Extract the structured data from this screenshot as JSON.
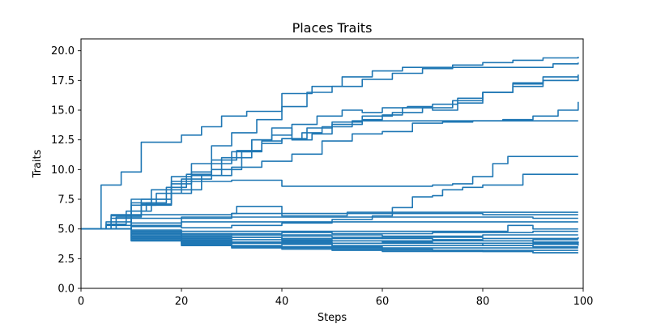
{
  "chart_data": {
    "type": "line",
    "title": "Places Traits",
    "xlabel": "Steps",
    "ylabel": "Traits",
    "xlim": [
      0,
      100
    ],
    "ylim": [
      0,
      21
    ],
    "xticks": [
      0,
      20,
      40,
      60,
      80,
      100
    ],
    "xtick_labels": [
      "0",
      "20",
      "40",
      "60",
      "80",
      "100"
    ],
    "yticks": [
      0,
      2.5,
      5,
      7.5,
      10,
      12.5,
      15,
      17.5,
      20
    ],
    "ytick_labels": [
      "0.0",
      "2.5",
      "5.0",
      "7.5",
      "10.0",
      "12.5",
      "15.0",
      "17.5",
      "20.0"
    ],
    "grid": false,
    "legend": "none",
    "color": "#1f77b4",
    "series": [
      {
        "x": [
          0,
          4,
          8,
          12,
          15,
          20,
          24,
          28,
          33,
          40,
          46,
          52,
          58,
          64,
          70,
          76,
          82,
          88,
          94,
          99
        ],
        "y": [
          5.0,
          8.7,
          9.8,
          12.3,
          12.3,
          12.9,
          13.6,
          14.5,
          14.9,
          16.4,
          17.0,
          17.8,
          18.3,
          18.6,
          18.6,
          18.6,
          18.6,
          18.6,
          18.9,
          19.0
        ]
      },
      {
        "x": [
          0,
          6,
          10,
          14,
          18,
          22,
          26,
          30,
          35,
          40,
          45,
          50,
          56,
          62,
          68,
          74,
          80,
          86,
          92,
          99
        ],
        "y": [
          5.0,
          6.2,
          7.2,
          8.3,
          9.4,
          10.5,
          12.0,
          13.1,
          14.2,
          15.3,
          16.5,
          17.0,
          17.6,
          18.1,
          18.5,
          18.8,
          19.0,
          19.2,
          19.4,
          19.5
        ]
      },
      {
        "x": [
          0,
          5,
          10,
          14,
          18,
          22,
          26,
          30,
          34,
          38,
          42,
          47,
          52,
          56,
          60,
          65,
          70,
          75,
          80,
          86,
          92,
          99
        ],
        "y": [
          5.0,
          5.3,
          6.5,
          7.5,
          8.8,
          9.8,
          10.5,
          11.5,
          12.5,
          12.9,
          13.8,
          14.5,
          15.0,
          14.8,
          15.2,
          15.3,
          15.5,
          16.0,
          16.5,
          17.0,
          17.5,
          17.5
        ]
      },
      {
        "x": [
          0,
          6,
          10,
          15,
          20,
          26,
          32,
          36,
          40,
          45,
          50,
          56,
          60,
          64,
          70,
          75,
          80,
          86,
          92,
          99
        ],
        "y": [
          5.0,
          5.9,
          7.0,
          8.0,
          9.2,
          10.0,
          11.5,
          12.4,
          12.6,
          13.5,
          14.0,
          14.2,
          14.6,
          15.2,
          15.0,
          15.6,
          16.5,
          17.3,
          17.8,
          18.0
        ]
      },
      {
        "x": [
          0,
          5,
          10,
          14,
          18,
          22,
          28,
          34,
          38,
          42,
          46,
          50,
          56,
          62,
          68,
          74,
          80,
          86,
          92,
          99
        ],
        "y": [
          5.0,
          5.6,
          7.5,
          7.0,
          9.0,
          9.5,
          11.0,
          12.5,
          13.5,
          12.5,
          13.0,
          13.8,
          14.5,
          14.8,
          15.2,
          15.8,
          16.5,
          17.2,
          17.5,
          17.8
        ]
      },
      {
        "x": [
          0,
          5,
          9,
          13,
          17,
          21,
          26,
          31,
          36,
          40,
          44,
          48,
          54,
          60,
          66,
          72,
          78,
          84,
          90,
          95,
          99
        ],
        "y": [
          5.0,
          5.4,
          6.5,
          7.2,
          8.5,
          9.6,
          10.8,
          11.6,
          12.2,
          12.6,
          13.1,
          13.6,
          14.1,
          14.1,
          14.1,
          14.1,
          14.1,
          14.2,
          14.5,
          15.0,
          15.7
        ]
      },
      {
        "x": [
          0,
          7,
          12,
          18,
          24,
          30,
          36,
          42,
          48,
          54,
          60,
          66,
          72,
          78,
          82,
          86,
          90,
          94,
          99
        ],
        "y": [
          5.0,
          6.0,
          7.1,
          8.3,
          9.5,
          10.2,
          10.7,
          11.3,
          12.4,
          13.0,
          13.2,
          13.9,
          14.0,
          14.1,
          14.1,
          14.1,
          14.1,
          14.1,
          14.1
        ]
      },
      {
        "x": [
          0,
          6,
          12,
          18,
          22,
          30,
          40,
          50,
          60,
          66,
          70,
          74,
          78,
          82,
          85,
          88,
          92,
          99
        ],
        "y": [
          5.0,
          6.1,
          7.5,
          8.0,
          9.0,
          9.1,
          8.6,
          8.6,
          8.6,
          8.6,
          8.7,
          8.8,
          9.4,
          10.5,
          11.1,
          11.1,
          11.1,
          11.1
        ]
      },
      {
        "x": [
          0,
          10,
          20,
          30,
          40,
          50,
          58,
          62,
          66,
          70,
          72,
          76,
          80,
          84,
          88,
          92,
          99
        ],
        "y": [
          5.0,
          5.2,
          5.1,
          5.3,
          5.5,
          5.8,
          6.1,
          6.8,
          7.7,
          7.8,
          8.3,
          8.5,
          8.7,
          8.7,
          9.6,
          9.6,
          9.6
        ]
      },
      {
        "x": [
          0,
          10,
          20,
          30,
          31,
          40,
          50,
          53,
          60,
          70,
          80,
          90,
          99
        ],
        "y": [
          5.0,
          5.3,
          5.9,
          6.3,
          6.9,
          6.1,
          6.1,
          6.4,
          6.4,
          6.4,
          6.4,
          6.4,
          6.4
        ]
      },
      {
        "x": [
          0,
          10,
          20,
          30,
          40,
          50,
          60,
          70,
          80,
          90,
          99
        ],
        "y": [
          5.0,
          6.2,
          6.2,
          6.3,
          6.3,
          6.3,
          6.3,
          6.3,
          6.2,
          6.2,
          6.2
        ]
      },
      {
        "x": [
          0,
          10,
          20,
          30,
          40,
          50,
          60,
          70,
          80,
          90,
          99
        ],
        "y": [
          5.0,
          5.9,
          6.0,
          6.0,
          6.0,
          6.0,
          6.0,
          6.0,
          6.0,
          5.9,
          5.9
        ]
      },
      {
        "x": [
          0,
          10,
          20,
          30,
          40,
          50,
          60,
          70,
          80,
          90,
          99
        ],
        "y": [
          5.0,
          5.5,
          5.6,
          5.6,
          5.6,
          5.6,
          5.6,
          5.6,
          5.6,
          5.6,
          5.6
        ]
      },
      {
        "x": [
          0,
          10,
          20,
          30,
          40,
          50,
          60,
          70,
          80,
          85,
          90,
          99
        ],
        "y": [
          5.0,
          4.9,
          4.8,
          4.8,
          4.8,
          4.8,
          4.8,
          4.8,
          4.8,
          5.3,
          5.0,
          5.0
        ]
      },
      {
        "x": [
          0,
          10,
          20,
          30,
          40,
          50,
          60,
          70,
          80,
          90,
          99
        ],
        "y": [
          5.0,
          4.7,
          4.6,
          4.6,
          4.7,
          4.6,
          4.6,
          4.7,
          4.7,
          4.8,
          4.8
        ]
      },
      {
        "x": [
          0,
          10,
          20,
          30,
          40,
          50,
          60,
          70,
          80,
          90,
          99
        ],
        "y": [
          5.0,
          4.6,
          4.5,
          4.5,
          4.5,
          4.5,
          4.4,
          4.4,
          4.5,
          4.5,
          4.5
        ]
      },
      {
        "x": [
          0,
          10,
          20,
          30,
          40,
          50,
          60,
          70,
          80,
          90,
          99
        ],
        "y": [
          5.0,
          4.5,
          4.3,
          4.3,
          4.2,
          4.2,
          4.3,
          4.3,
          4.2,
          4.2,
          4.3
        ]
      },
      {
        "x": [
          0,
          10,
          20,
          30,
          40,
          50,
          60,
          70,
          80,
          90,
          99
        ],
        "y": [
          5.0,
          4.4,
          4.2,
          4.1,
          4.0,
          4.0,
          4.0,
          4.0,
          4.0,
          4.1,
          4.1
        ]
      },
      {
        "x": [
          0,
          10,
          20,
          30,
          40,
          50,
          60,
          70,
          80,
          90,
          99
        ],
        "y": [
          5.0,
          4.3,
          4.0,
          3.9,
          3.9,
          3.8,
          3.8,
          3.8,
          3.8,
          3.8,
          3.9
        ]
      },
      {
        "x": [
          0,
          10,
          20,
          30,
          40,
          50,
          60,
          70,
          80,
          90,
          99
        ],
        "y": [
          5.0,
          4.2,
          3.9,
          3.8,
          3.7,
          3.6,
          3.6,
          3.6,
          3.6,
          3.7,
          3.6
        ]
      },
      {
        "x": [
          0,
          10,
          20,
          30,
          40,
          50,
          60,
          70,
          80,
          90,
          99
        ],
        "y": [
          5.0,
          4.1,
          3.8,
          3.6,
          3.5,
          3.4,
          3.4,
          3.4,
          3.4,
          3.4,
          3.4
        ]
      },
      {
        "x": [
          0,
          10,
          20,
          30,
          40,
          50,
          60,
          70,
          80,
          90,
          99
        ],
        "y": [
          5.0,
          4.0,
          3.7,
          3.5,
          3.4,
          3.3,
          3.2,
          3.2,
          3.2,
          3.2,
          3.2
        ]
      },
      {
        "x": [
          0,
          10,
          20,
          30,
          40,
          50,
          60,
          70,
          80,
          90,
          99
        ],
        "y": [
          5.0,
          4.0,
          3.6,
          3.4,
          3.3,
          3.2,
          3.1,
          3.1,
          3.1,
          3.0,
          3.0
        ]
      },
      {
        "x": [
          0,
          10,
          20,
          30,
          40,
          50,
          60,
          70,
          80,
          90,
          99
        ],
        "y": [
          5.0,
          4.3,
          4.1,
          3.9,
          3.8,
          3.5,
          3.3,
          3.2,
          3.1,
          3.0,
          3.0
        ]
      },
      {
        "x": [
          0,
          10,
          20,
          30,
          40,
          50,
          60,
          70,
          80,
          90,
          99
        ],
        "y": [
          5.0,
          4.6,
          4.4,
          4.3,
          4.1,
          4.0,
          3.9,
          3.8,
          3.6,
          3.5,
          3.5
        ]
      },
      {
        "x": [
          0,
          10,
          20,
          30,
          40,
          50,
          60,
          70,
          80,
          90,
          99
        ],
        "y": [
          5.0,
          4.8,
          4.6,
          4.5,
          4.4,
          4.3,
          4.2,
          4.1,
          4.0,
          3.9,
          3.8
        ]
      }
    ]
  }
}
